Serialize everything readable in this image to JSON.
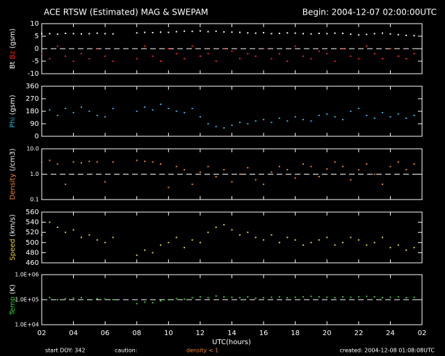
{
  "header": {
    "title": "ACE RTSW (Estimated) MAG & SWEPAM",
    "begin": "Begin: 2004-12-07 02:00:00UTC"
  },
  "xaxis": {
    "label": "UTC(hours)",
    "xlim": [
      2,
      26
    ],
    "xticks": [
      {
        "value": 2,
        "label": "02"
      },
      {
        "value": 4,
        "label": "04"
      },
      {
        "value": 6,
        "label": "06"
      },
      {
        "value": 8,
        "label": "08"
      },
      10,
      12,
      14,
      16,
      18,
      20,
      22,
      24,
      {
        "value": 26,
        "label": "02"
      }
    ]
  },
  "footer": {
    "start": "start DOY: 342",
    "caution": "caution:",
    "density_note": "density < 1",
    "created": "created: 2004-12-08 01:08:08UTC"
  },
  "chart_data": [
    {
      "type": "scatter",
      "ylabel": "(gsm)",
      "ylim": [
        -10,
        10
      ],
      "yticks": [
        -10,
        -5,
        0,
        5,
        10
      ],
      "hline": 0,
      "log": false,
      "x": [
        2,
        2.5,
        3,
        3.5,
        4,
        4.5,
        5,
        5.5,
        6,
        6.5,
        7,
        7.5,
        8,
        8.5,
        9,
        9.5,
        10,
        10.5,
        11,
        11.5,
        12,
        12.5,
        13,
        13.5,
        14,
        14.5,
        15,
        15.5,
        16,
        16.5,
        17,
        17.5,
        18,
        18.5,
        19,
        19.5,
        20,
        20.5,
        21,
        21.5,
        22,
        22.5,
        23,
        23.5,
        24,
        24.5,
        25,
        25.5
      ],
      "series": [
        {
          "name": "Bt",
          "color": "#ffffff",
          "values": [
            6,
            6,
            5.8,
            6.1,
            6,
            5.9,
            6,
            6.2,
            6,
            5.9,
            null,
            null,
            6.3,
            6.5,
            6.4,
            6.6,
            6.5,
            6.8,
            7,
            6.9,
            7.1,
            6.8,
            7,
            6.7,
            6.6,
            6.5,
            6.3,
            6.2,
            6.4,
            6,
            6.1,
            6.3,
            6.2,
            6,
            5.9,
            6.1,
            6,
            6.2,
            6.1,
            5.8,
            5.5,
            5.7,
            6,
            6.2,
            5.9,
            5.6,
            5.3,
            5.2
          ]
        },
        {
          "name": "Bz",
          "color": "#ff2020",
          "values": [
            -2,
            -4,
            1,
            -3,
            -5,
            -2,
            -4,
            0,
            -3,
            -5,
            null,
            null,
            -4,
            1,
            -3,
            -5,
            0,
            -2,
            -4,
            1,
            -3,
            -2,
            -5,
            0,
            -1,
            -4,
            -2,
            -3,
            0,
            -4,
            -2,
            -5,
            1,
            -3,
            -4,
            -1,
            -2,
            -5,
            0,
            -3,
            -4,
            1,
            -2,
            -4,
            0,
            -3,
            -4,
            -2
          ]
        }
      ]
    },
    {
      "type": "scatter",
      "ylabel": "(gsm)",
      "ylim": [
        0,
        360
      ],
      "yticks": [
        0,
        90,
        180,
        270,
        360
      ],
      "log": false,
      "x": [
        2,
        2.5,
        3,
        3.5,
        4,
        4.5,
        5,
        5.5,
        6,
        6.5,
        7,
        7.5,
        8,
        8.5,
        9,
        9.5,
        10,
        10.5,
        11,
        11.5,
        12,
        12.5,
        13,
        13.5,
        14,
        14.5,
        15,
        15.5,
        16,
        16.5,
        17,
        17.5,
        18,
        18.5,
        19,
        19.5,
        20,
        20.5,
        21,
        21.5,
        22,
        22.5,
        23,
        23.5,
        24,
        24.5,
        25,
        25.5
      ],
      "series": [
        {
          "name": "Phi",
          "color": "#30b0e0",
          "values": [
            160,
            190,
            150,
            200,
            170,
            210,
            180,
            150,
            140,
            200,
            null,
            null,
            180,
            210,
            190,
            230,
            200,
            180,
            170,
            200,
            140,
            90,
            70,
            60,
            80,
            100,
            90,
            110,
            120,
            100,
            130,
            110,
            140,
            120,
            110,
            150,
            160,
            140,
            120,
            180,
            200,
            150,
            130,
            170,
            140,
            160,
            130,
            150
          ]
        }
      ]
    },
    {
      "type": "scatter",
      "ylabel": "(/cm3)",
      "ylim": [
        0.1,
        10
      ],
      "yticks": [
        0.1,
        {
          "value": 1,
          "label": "1.0"
        },
        {
          "value": 10,
          "label": "10.0"
        }
      ],
      "hline": 1,
      "log": true,
      "x": [
        2,
        2.5,
        3,
        3.5,
        4,
        4.5,
        5,
        5.5,
        6,
        6.5,
        7,
        7.5,
        8,
        8.5,
        9,
        9.5,
        10,
        10.5,
        11,
        11.5,
        12,
        12.5,
        13,
        13.5,
        14,
        14.5,
        15,
        15.5,
        16,
        16.5,
        17,
        17.5,
        18,
        18.5,
        19,
        19.5,
        20,
        20.5,
        21,
        21.5,
        22,
        22.5,
        23,
        23.5,
        24,
        24.5,
        25,
        25.5
      ],
      "series": [
        {
          "name": "Density",
          "color": "#f08030",
          "values": [
            3,
            3.5,
            2.5,
            0.4,
            3,
            2.8,
            3.2,
            3,
            0.5,
            3,
            null,
            null,
            3.5,
            3.2,
            3,
            2.5,
            0.3,
            2,
            1.5,
            0.4,
            1.2,
            2,
            0.8,
            1.5,
            0.5,
            1,
            1.8,
            0.6,
            0.4,
            1.2,
            2,
            1.5,
            0.7,
            2.5,
            2,
            0.8,
            1.6,
            3,
            2,
            0.6,
            1.5,
            2.5,
            1,
            0.4,
            2,
            3,
            1.5,
            2.5
          ]
        }
      ]
    },
    {
      "type": "scatter",
      "ylabel": "(km/s)",
      "ylim": [
        460,
        560
      ],
      "yticks": [
        460,
        480,
        500,
        520,
        540,
        560
      ],
      "log": false,
      "x": [
        2,
        2.5,
        3,
        3.5,
        4,
        4.5,
        5,
        5.5,
        6,
        6.5,
        7,
        7.5,
        8,
        8.5,
        9,
        9.5,
        10,
        10.5,
        11,
        11.5,
        12,
        12.5,
        13,
        13.5,
        14,
        14.5,
        15,
        15.5,
        16,
        16.5,
        17,
        17.5,
        18,
        18.5,
        19,
        19.5,
        20,
        20.5,
        21,
        21.5,
        22,
        22.5,
        23,
        23.5,
        24,
        24.5,
        25,
        25.5
      ],
      "series": [
        {
          "name": "Speed",
          "color": "#e8d040",
          "values": [
            515,
            540,
            530,
            520,
            525,
            510,
            515,
            505,
            500,
            510,
            null,
            null,
            475,
            485,
            480,
            495,
            500,
            510,
            490,
            505,
            500,
            520,
            530,
            535,
            525,
            515,
            520,
            510,
            505,
            515,
            500,
            510,
            505,
            495,
            500,
            505,
            510,
            495,
            500,
            510,
            505,
            495,
            500,
            510,
            490,
            495,
            485,
            490
          ]
        }
      ]
    },
    {
      "type": "scatter",
      "ylabel": "(K)",
      "ylim": [
        10000,
        1000000
      ],
      "yticks": [
        {
          "value": 10000,
          "label": "1.0E+04"
        },
        {
          "value": 100000,
          "label": "1.0E+05"
        },
        {
          "value": 1000000,
          "label": "1.0E+06"
        }
      ],
      "hline": 100000,
      "log": true,
      "x": [
        2,
        2.5,
        3,
        3.5,
        4,
        4.5,
        5,
        5.5,
        6,
        6.5,
        7,
        7.5,
        8,
        8.5,
        9,
        9.5,
        10,
        10.5,
        11,
        11.5,
        12,
        12.5,
        13,
        13.5,
        14,
        14.5,
        15,
        15.5,
        16,
        16.5,
        17,
        17.5,
        18,
        18.5,
        19,
        19.5,
        20,
        20.5,
        21,
        21.5,
        22,
        22.5,
        23,
        23.5,
        24,
        24.5,
        25,
        25.5
      ],
      "series": [
        {
          "name": "Temp",
          "color": "#30d030",
          "values": [
            110000,
            120000,
            100000,
            110000,
            115000,
            120000,
            100000,
            110000,
            105000,
            100000,
            null,
            null,
            70000,
            80000,
            75000,
            90000,
            100000,
            110000,
            105000,
            120000,
            130000,
            120000,
            140000,
            130000,
            125000,
            120000,
            130000,
            115000,
            120000,
            125000,
            130000,
            120000,
            125000,
            130000,
            135000,
            130000,
            125000,
            120000,
            130000,
            125000,
            130000,
            135000,
            130000,
            120000,
            125000,
            130000,
            120000,
            125000
          ]
        }
      ]
    }
  ]
}
